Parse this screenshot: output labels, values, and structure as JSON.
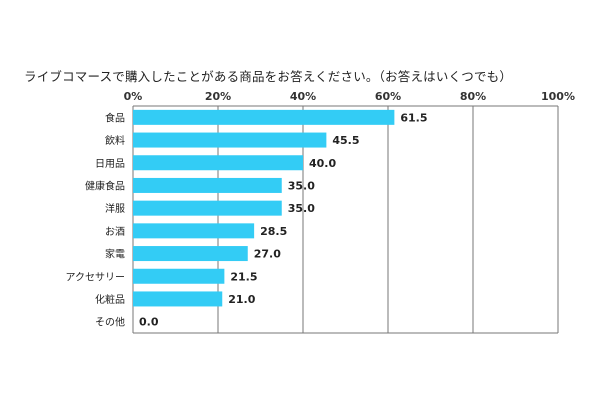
{
  "chart_data": {
    "type": "bar",
    "orientation": "horizontal",
    "title": "ライブコマースで購入したことがある商品をお答えください。（お答えはいくつでも）",
    "categories": [
      "食品",
      "飲料",
      "日用品",
      "健康食品",
      "洋服",
      "お酒",
      "家電",
      "アクセサリー",
      "化粧品",
      "その他"
    ],
    "values": [
      61.5,
      45.5,
      40.0,
      35.0,
      35.0,
      28.5,
      27.0,
      21.5,
      21.0,
      0.0
    ],
    "value_labels": [
      "61.5",
      "45.5",
      "40.0",
      "35.0",
      "35.0",
      "28.5",
      "27.0",
      "21.5",
      "21.0",
      "0.0"
    ],
    "xlim": [
      0,
      100
    ],
    "ticks": [
      0,
      20,
      40,
      60,
      80,
      100
    ],
    "tick_labels": [
      "0%",
      "20%",
      "40%",
      "60%",
      "80%",
      "100%"
    ],
    "axis_position": "top",
    "grid": true,
    "legend": "none",
    "bar_color": "#33ccf5"
  }
}
